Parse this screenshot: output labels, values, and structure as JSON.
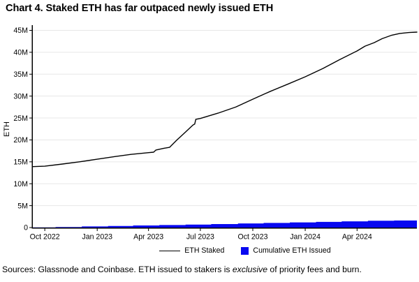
{
  "page": {
    "title": "Chart 4. Staked ETH has far outpaced newly issued ETH",
    "footer": {
      "part1": "Sources: Glassnode and Coinbase. ETH issued to stakers is ",
      "part2": "exclusive",
      "part3": " of priority fees and burn."
    }
  },
  "chart_data": {
    "type": "line",
    "title": "Chart 4. Staked ETH has far outpaced newly issued ETH",
    "xlabel": "",
    "ylabel": "ETH",
    "unit": "millions of ETH",
    "ylim": [
      0,
      45
    ],
    "grid": "horizontal",
    "legend_position": "bottom",
    "ytick_values": [
      0,
      5,
      10,
      15,
      20,
      25,
      30,
      35,
      40,
      45
    ],
    "ytick_labels": [
      "0",
      "5M",
      "10M",
      "15M",
      "20M",
      "25M",
      "30M",
      "35M",
      "40M",
      "45M"
    ],
    "xticks": [
      {
        "date": "2022-10-01",
        "label": "Oct 2022"
      },
      {
        "date": "2023-01-01",
        "label": "Jan 2023"
      },
      {
        "date": "2023-04-01",
        "label": "Apr 2023"
      },
      {
        "date": "2023-07-01",
        "label": "Jul 2023"
      },
      {
        "date": "2023-10-01",
        "label": "Oct 2023"
      },
      {
        "date": "2024-01-01",
        "label": "Jan 2024"
      },
      {
        "date": "2024-04-01",
        "label": "Apr 2024"
      }
    ],
    "x_range": [
      "2022-09-10",
      "2024-07-15"
    ],
    "colors": {
      "staked": "#000000",
      "issued": "#0808f0",
      "gridline": "#e7e7e7",
      "axis": "#000000"
    },
    "series": [
      {
        "name": "ETH Staked",
        "type": "line",
        "color_key": "staked",
        "points": [
          [
            "2022-09-10",
            13.9
          ],
          [
            "2022-10-01",
            14.0
          ],
          [
            "2022-11-01",
            14.5
          ],
          [
            "2022-12-01",
            15.0
          ],
          [
            "2023-01-01",
            15.6
          ],
          [
            "2023-02-01",
            16.2
          ],
          [
            "2023-03-01",
            16.7
          ],
          [
            "2023-04-01",
            17.1
          ],
          [
            "2023-04-10",
            17.2
          ],
          [
            "2023-04-14",
            17.7
          ],
          [
            "2023-04-28",
            18.1
          ],
          [
            "2023-05-08",
            18.3
          ],
          [
            "2023-05-21",
            20.0
          ],
          [
            "2023-06-05",
            21.8
          ],
          [
            "2023-06-18",
            23.4
          ],
          [
            "2023-06-21",
            23.6
          ],
          [
            "2023-06-23",
            24.7
          ],
          [
            "2023-07-01",
            24.9
          ],
          [
            "2023-08-01",
            26.1
          ],
          [
            "2023-09-01",
            27.5
          ],
          [
            "2023-10-01",
            29.3
          ],
          [
            "2023-11-01",
            31.1
          ],
          [
            "2023-12-01",
            32.7
          ],
          [
            "2024-01-01",
            34.4
          ],
          [
            "2024-02-01",
            36.3
          ],
          [
            "2024-03-01",
            38.3
          ],
          [
            "2024-04-01",
            40.3
          ],
          [
            "2024-04-15",
            41.4
          ],
          [
            "2024-05-01",
            42.2
          ],
          [
            "2024-05-15",
            43.1
          ],
          [
            "2024-06-01",
            43.9
          ],
          [
            "2024-06-15",
            44.3
          ],
          [
            "2024-07-01",
            44.5
          ],
          [
            "2024-07-15",
            44.6
          ]
        ]
      },
      {
        "name": "Cumulative ETH Issued",
        "type": "step-area",
        "color_key": "issued",
        "points": [
          [
            "2022-09-10",
            0.03
          ],
          [
            "2022-10-20",
            0.12
          ],
          [
            "2022-12-05",
            0.25
          ],
          [
            "2023-01-20",
            0.36
          ],
          [
            "2023-03-05",
            0.47
          ],
          [
            "2023-04-20",
            0.57
          ],
          [
            "2023-06-05",
            0.68
          ],
          [
            "2023-07-20",
            0.8
          ],
          [
            "2023-09-05",
            0.93
          ],
          [
            "2023-10-20",
            1.06
          ],
          [
            "2023-12-05",
            1.18
          ],
          [
            "2024-01-20",
            1.3
          ],
          [
            "2024-03-05",
            1.42
          ],
          [
            "2024-04-20",
            1.55
          ],
          [
            "2024-06-05",
            1.62
          ],
          [
            "2024-07-15",
            1.66
          ]
        ]
      }
    ]
  }
}
